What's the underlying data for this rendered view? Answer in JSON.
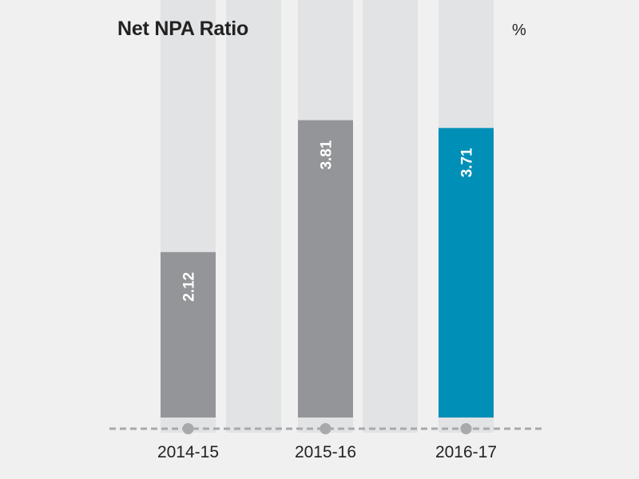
{
  "chart_data": {
    "type": "bar",
    "title": "Net NPA Ratio",
    "unit": "%",
    "xlabel": "",
    "ylabel": "",
    "categories": [
      "2014-15",
      "2015-16",
      "2016-17"
    ],
    "values": [
      2.12,
      3.81,
      3.71
    ],
    "ylim": [
      0,
      5.35
    ],
    "grid": false,
    "legend": "none",
    "colors": {
      "bar_default": "#939598",
      "bar_highlight": "#008fb7",
      "track": "#e2e3e5",
      "label": "#ffffff",
      "baseline": "#a7a9ac",
      "text": "#222222"
    }
  }
}
